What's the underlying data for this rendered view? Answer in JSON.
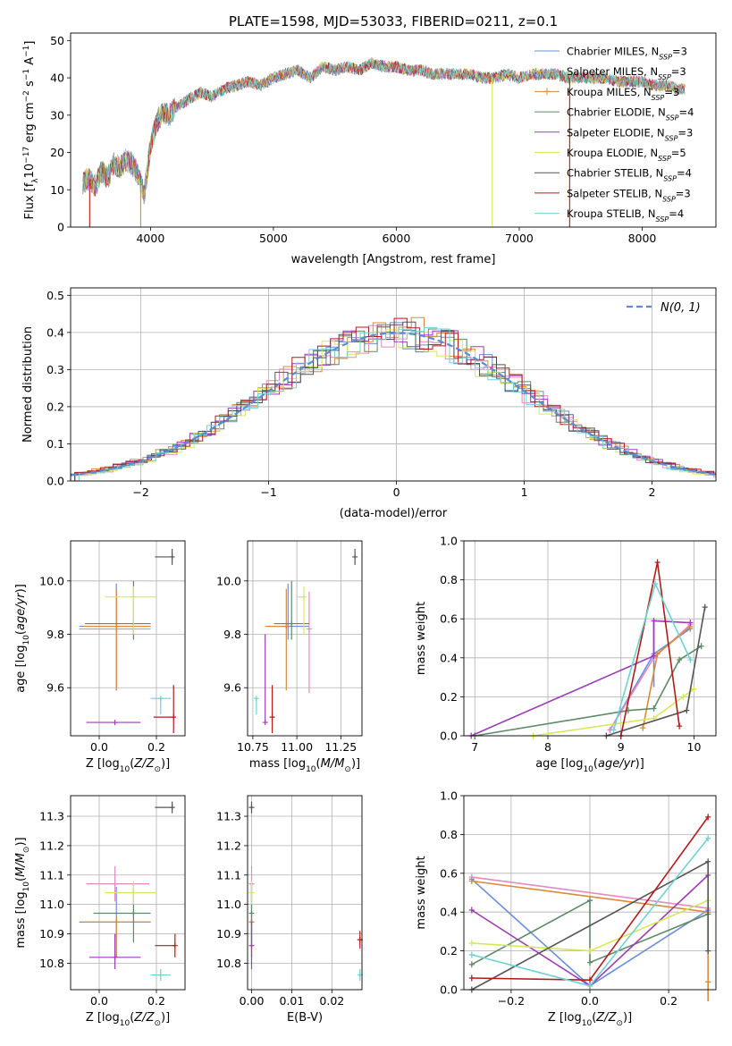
{
  "title": "PLATE=1598, MJD=53033, FIBERID=0211, z=0.1",
  "colors": [
    "#6a8fd8",
    "#e28ac2",
    "#d98a3c",
    "#5e8a66",
    "#9b3db5",
    "#d6e85a",
    "#555555",
    "#b31b1b",
    "#6fd2d2"
  ],
  "legend_spectrum": [
    "Chabrier MILES, N$_{SSP}$=3",
    "Salpeter MILES, N$_{SSP}$=3",
    "Kroupa MILES, N$_{SSP}$=3",
    "Chabrier ELODIE, N$_{SSP}$=4",
    "Salpeter ELODIE, N$_{SSP}$=3",
    "Kroupa ELODIE, N$_{SSP}$=5",
    "Chabrier STELIB, N$_{SSP}$=4",
    "Salpeter STELIB, N$_{SSP}$=3",
    "Kroupa STELIB, N$_{SSP}$=4"
  ],
  "legend_hist": "N(0, 1)",
  "chart_data": [
    {
      "type": "line",
      "name": "spectrum",
      "xlabel": "wavelength [Angstrom, rest frame]",
      "ylabel": "Flux [f_λ 10^-17 erg cm^-2 s^-1 A^-1]",
      "xlim": [
        3350,
        8600
      ],
      "ylim": [
        0,
        52
      ],
      "xticks": [
        4000,
        5000,
        6000,
        7000,
        8000
      ],
      "yticks": [
        0,
        10,
        20,
        30,
        40,
        50
      ],
      "grid": false,
      "envelope": {
        "x": [
          3450,
          3500,
          3550,
          3600,
          3650,
          3700,
          3750,
          3800,
          3850,
          3900,
          3950,
          4000,
          4050,
          4100,
          4150,
          4200,
          4300,
          4400,
          4500,
          4600,
          4700,
          4800,
          4900,
          5000,
          5100,
          5200,
          5300,
          5400,
          5500,
          5600,
          5700,
          5800,
          5900,
          6000,
          6100,
          6200,
          6300,
          6400,
          6500,
          6600,
          6700,
          6800,
          6900,
          7000,
          7100,
          7200,
          7300,
          7400,
          7500,
          7600,
          7700,
          7800,
          7900,
          8000,
          8100,
          8200,
          8300,
          8350
        ],
        "y": [
          12,
          13,
          11,
          15,
          13,
          17,
          16,
          18,
          17,
          14,
          9,
          22,
          28,
          31,
          30,
          32,
          34,
          36,
          35,
          37,
          38,
          39,
          38,
          40,
          41,
          42,
          40,
          43,
          42,
          43,
          42,
          44,
          43,
          43,
          42,
          42,
          41,
          41,
          41,
          41,
          40,
          40,
          41,
          40,
          41,
          41,
          41,
          40,
          40,
          40,
          40,
          39,
          39,
          39,
          38,
          38,
          37,
          37
        ]
      },
      "drops": [
        {
          "x": 3505,
          "color_index": 7
        },
        {
          "x": 3920,
          "color_index": 2
        },
        {
          "x": 6780,
          "color_index": 5
        },
        {
          "x": 7410,
          "color_index": 7
        }
      ]
    },
    {
      "type": "bar",
      "name": "residual-histogram",
      "xlabel": "(data-model)/error",
      "ylabel": "Normed distribution",
      "xlim": [
        -2.55,
        2.5
      ],
      "ylim": [
        0,
        0.52
      ],
      "xticks": [
        -2,
        -1,
        0,
        1,
        2
      ],
      "yticks": [
        0.0,
        0.1,
        0.2,
        0.3,
        0.4,
        0.5
      ],
      "grid": true,
      "bin_width": 0.1,
      "overlay": {
        "name": "N(0, 1)",
        "type": "gaussian",
        "mu": 0,
        "sigma": 1,
        "style": "dashed"
      }
    },
    {
      "type": "scatter",
      "name": "age-vs-Z",
      "xlabel": "Z [log10(Z/Z_sun)]",
      "ylabel": "age [log10(age/yr)]",
      "xlim": [
        -0.1,
        0.3
      ],
      "ylim": [
        9.42,
        10.15
      ],
      "xticks": [
        0.0,
        0.2
      ],
      "yticks": [
        9.6,
        9.8,
        10.0
      ],
      "grid": true,
      "points": [
        {
          "x": 0.06,
          "y": 9.83,
          "xerr": [
            0.13,
            0.12
          ],
          "yerr": [
            0.24,
            0.16
          ],
          "c": 0
        },
        {
          "x": 0.06,
          "y": 9.82,
          "xerr": [
            0.13,
            0.12
          ],
          "yerr": [
            0.23,
            0.14
          ],
          "c": 1
        },
        {
          "x": 0.06,
          "y": 9.83,
          "xerr": [
            0.12,
            0.12
          ],
          "yerr": [
            0.24,
            0.14
          ],
          "c": 2
        },
        {
          "x": 0.12,
          "y": 9.84,
          "xerr": [
            0.17,
            0.06
          ],
          "yerr": [
            0.06,
            0.16
          ],
          "c": 3
        },
        {
          "x": 0.055,
          "y": 9.47,
          "xerr": [
            0.1,
            0.09
          ],
          "yerr": [
            0.0,
            0.0
          ],
          "c": 4
        },
        {
          "x": 0.12,
          "y": 9.94,
          "xerr": [
            0.1,
            0.08
          ],
          "yerr": [
            0.14,
            0.04
          ],
          "c": 5
        },
        {
          "x": 0.255,
          "y": 10.09,
          "xerr": [
            0.06,
            0.0
          ],
          "yerr": [
            0.03,
            0.03
          ],
          "c": 6
        },
        {
          "x": 0.26,
          "y": 9.49,
          "xerr": [
            0.07,
            0.0
          ],
          "yerr": [
            0.06,
            0.12
          ],
          "c": 7
        },
        {
          "x": 0.215,
          "y": 9.56,
          "xerr": [
            0.035,
            0.035
          ],
          "yerr": [
            0.06,
            0.0
          ],
          "c": 8
        }
      ]
    },
    {
      "type": "scatter",
      "name": "age-vs-mass",
      "xlabel": "mass [log10(M/M_sun)]",
      "ylabel": "",
      "xlim": [
        10.72,
        11.37
      ],
      "ylim": [
        9.42,
        10.15
      ],
      "xticks": [
        10.75,
        11.0,
        11.25
      ],
      "yticks": [
        9.6,
        9.8,
        10.0
      ],
      "grid": true,
      "points": [
        {
          "x": 10.95,
          "y": 9.83,
          "xerr": [
            0.12,
            0.12
          ],
          "yerr": [
            0.05,
            0.16
          ],
          "c": 0
        },
        {
          "x": 11.07,
          "y": 9.82,
          "xerr": [
            0.0,
            0.0
          ],
          "yerr": [
            0.24,
            0.14
          ],
          "c": 1
        },
        {
          "x": 10.94,
          "y": 9.83,
          "xerr": [
            0.12,
            0.0
          ],
          "yerr": [
            0.24,
            0.14
          ],
          "c": 2
        },
        {
          "x": 10.97,
          "y": 9.84,
          "xerr": [
            0.1,
            0.1
          ],
          "yerr": [
            0.06,
            0.16
          ],
          "c": 3
        },
        {
          "x": 10.82,
          "y": 9.47,
          "xerr": [
            0.0,
            0.0
          ],
          "yerr": [
            0.0,
            0.33
          ],
          "c": 4
        },
        {
          "x": 11.04,
          "y": 9.94,
          "xerr": [
            0.04,
            0.0
          ],
          "yerr": [
            0.14,
            0.04
          ],
          "c": 5
        },
        {
          "x": 11.33,
          "y": 10.09,
          "xerr": [
            0.0,
            0.0
          ],
          "yerr": [
            0.03,
            0.03
          ],
          "c": 6
        },
        {
          "x": 10.86,
          "y": 9.49,
          "xerr": [
            0.0,
            0.0
          ],
          "yerr": [
            0.06,
            0.12
          ],
          "c": 7
        },
        {
          "x": 10.77,
          "y": 9.56,
          "xerr": [
            0.0,
            0.0
          ],
          "yerr": [
            0.06,
            0.0
          ],
          "c": 8
        }
      ]
    },
    {
      "type": "line",
      "name": "mass-weight-vs-age",
      "xlabel": "age [log10(age/yr)]",
      "ylabel": "mass weight",
      "xlim": [
        6.85,
        10.3
      ],
      "ylim": [
        0,
        1
      ],
      "xticks": [
        7,
        8,
        9,
        10
      ],
      "yticks": [
        0.0,
        0.2,
        0.4,
        0.6,
        0.8,
        1.0
      ],
      "grid": true,
      "series": [
        {
          "c": 0,
          "x": [
            8.85,
            9.45,
            9.95
          ],
          "y": [
            0.03,
            0.42,
            0.55
          ],
          "err": [
            0,
            0.17,
            0
          ]
        },
        {
          "c": 1,
          "x": [
            8.85,
            9.45,
            9.95
          ],
          "y": [
            0.03,
            0.4,
            0.57
          ],
          "err": [
            0,
            0,
            0
          ]
        },
        {
          "c": 2,
          "x": [
            9.3,
            9.5,
            9.95
          ],
          "y": [
            0.04,
            0.42,
            0.56
          ],
          "err": [
            0,
            0,
            0
          ]
        },
        {
          "c": 3,
          "x": [
            7.0,
            9.1,
            9.45,
            9.8,
            10.1
          ],
          "y": [
            0.0,
            0.13,
            0.14,
            0.39,
            0.46
          ],
          "err": [
            0,
            0,
            0,
            0,
            0
          ]
        },
        {
          "c": 4,
          "x": [
            6.95,
            9.45,
            9.45,
            9.95
          ],
          "y": [
            0.0,
            0.41,
            0.59,
            0.58
          ],
          "err": [
            0,
            0,
            0.18,
            0
          ]
        },
        {
          "c": 5,
          "x": [
            7.8,
            9.45,
            9.85,
            10.0
          ],
          "y": [
            0.0,
            0.09,
            0.2,
            0.24
          ],
          "err": [
            0,
            0,
            0,
            0
          ]
        },
        {
          "c": 6,
          "x": [
            8.8,
            9.9,
            10.15
          ],
          "y": [
            0.0,
            0.13,
            0.66
          ],
          "err": [
            0,
            0,
            0
          ]
        },
        {
          "c": 7,
          "x": [
            9.0,
            9.5,
            9.8
          ],
          "y": [
            0.0,
            0.89,
            0.05
          ],
          "err": [
            0,
            0,
            0
          ]
        },
        {
          "c": 8,
          "x": [
            8.9,
            9.47,
            9.95
          ],
          "y": [
            0.03,
            0.78,
            0.39
          ],
          "err": [
            0,
            0,
            0
          ]
        }
      ]
    },
    {
      "type": "scatter",
      "name": "mass-vs-Z",
      "xlabel": "Z [log10(Z/Z_sun)]",
      "ylabel": "mass [log10(M/M_sun)]",
      "xlim": [
        -0.1,
        0.3
      ],
      "ylim": [
        10.71,
        11.37
      ],
      "xticks": [
        0.0,
        0.2
      ],
      "yticks": [
        10.8,
        10.9,
        11.0,
        11.1,
        11.2,
        11.3
      ],
      "grid": true,
      "points": [
        {
          "x": 0.06,
          "y": 10.94,
          "xerr": [
            0.13,
            0.12
          ],
          "yerr": [
            0.12,
            0.12
          ],
          "c": 0
        },
        {
          "x": 0.055,
          "y": 11.07,
          "xerr": [
            0.1,
            0.12
          ],
          "yerr": [
            0.06,
            0.06
          ],
          "c": 1
        },
        {
          "x": 0.06,
          "y": 10.94,
          "xerr": [
            0.12,
            0.12
          ],
          "yerr": [
            0.12,
            0.02
          ],
          "c": 2
        },
        {
          "x": 0.12,
          "y": 10.97,
          "xerr": [
            0.14,
            0.06
          ],
          "yerr": [
            0.1,
            0.1
          ],
          "c": 3
        },
        {
          "x": 0.055,
          "y": 10.82,
          "xerr": [
            0.09,
            0.09
          ],
          "yerr": [
            0.04,
            0.08
          ],
          "c": 4
        },
        {
          "x": 0.12,
          "y": 11.04,
          "xerr": [
            0.1,
            0.08
          ],
          "yerr": [
            0.04,
            0.04
          ],
          "c": 5
        },
        {
          "x": 0.255,
          "y": 11.33,
          "xerr": [
            0.06,
            0.0
          ],
          "yerr": [
            0.02,
            0.02
          ],
          "c": 6
        },
        {
          "x": 0.265,
          "y": 10.86,
          "xerr": [
            0.07,
            0.0
          ],
          "yerr": [
            0.04,
            0.04
          ],
          "c": 7
        },
        {
          "x": 0.215,
          "y": 10.76,
          "xerr": [
            0.035,
            0.035
          ],
          "yerr": [
            0.02,
            0.02
          ],
          "c": 8
        }
      ]
    },
    {
      "type": "scatter",
      "name": "mass-vs-EBV",
      "xlabel": "E(B-V)",
      "ylabel": "",
      "xlim": [
        -0.001,
        0.0275
      ],
      "ylim": [
        10.71,
        11.37
      ],
      "xticks": [
        0.0,
        0.01,
        0.02
      ],
      "yticks": [
        10.8,
        10.9,
        11.0,
        11.1,
        11.2,
        11.3
      ],
      "grid": true,
      "points": [
        {
          "x": 0.0,
          "y": 10.94,
          "yerr": [
            0.12,
            0.12
          ],
          "c": 0
        },
        {
          "x": 0.0,
          "y": 11.07,
          "yerr": [
            0.06,
            0.06
          ],
          "c": 1
        },
        {
          "x": 0.0,
          "y": 10.94,
          "yerr": [
            0.12,
            0.02
          ],
          "c": 2
        },
        {
          "x": 0.0,
          "y": 10.97,
          "yerr": [
            0.1,
            0.1
          ],
          "c": 3
        },
        {
          "x": 0.0,
          "y": 10.86,
          "yerr": [
            0.08,
            0.08
          ],
          "c": 4
        },
        {
          "x": 0.0,
          "y": 11.04,
          "yerr": [
            0.04,
            0.04
          ],
          "c": 5
        },
        {
          "x": 0.0,
          "y": 11.33,
          "yerr": [
            0.02,
            0.02
          ],
          "c": 6
        },
        {
          "x": 0.027,
          "y": 10.88,
          "yerr": [
            0.03,
            0.03
          ],
          "c": 7
        },
        {
          "x": 0.027,
          "y": 10.76,
          "yerr": [
            0.02,
            0.02
          ],
          "c": 8
        }
      ]
    },
    {
      "type": "line",
      "name": "mass-weight-vs-Z",
      "xlabel": "Z [log10(Z/Z_sun)]",
      "ylabel": "mass weight",
      "xlim": [
        -0.32,
        0.32
      ],
      "ylim": [
        0,
        1
      ],
      "xticks": [
        -0.2,
        0.0,
        0.2
      ],
      "yticks": [
        0.0,
        0.2,
        0.4,
        0.6,
        0.8,
        1.0
      ],
      "grid": true,
      "series": [
        {
          "c": 0,
          "x": [
            -0.3,
            0.0,
            0.3
          ],
          "y": [
            0.57,
            0.02,
            0.41
          ],
          "err": [
            0,
            0,
            0
          ]
        },
        {
          "c": 1,
          "x": [
            -0.3,
            0.3
          ],
          "y": [
            0.58,
            0.42
          ],
          "err": [
            0,
            0
          ]
        },
        {
          "c": 2,
          "x": [
            -0.3,
            0.3,
            0.3
          ],
          "y": [
            0.56,
            0.4,
            0.04
          ],
          "err": [
            0,
            0,
            0.1
          ]
        },
        {
          "c": 3,
          "x": [
            -0.3,
            0.0,
            0.0,
            0.3
          ],
          "y": [
            0.13,
            0.46,
            0.14,
            0.39
          ],
          "err": [
            0,
            0,
            0,
            0
          ]
        },
        {
          "c": 4,
          "x": [
            -0.3,
            0.0,
            0.3
          ],
          "y": [
            0.41,
            0.02,
            0.59
          ],
          "err": [
            0,
            0,
            0
          ]
        },
        {
          "c": 5,
          "x": [
            -0.3,
            0.0,
            0.3
          ],
          "y": [
            0.24,
            0.2,
            0.46
          ],
          "err": [
            0,
            0,
            0
          ]
        },
        {
          "c": 6,
          "x": [
            -0.3,
            0.3,
            0.3
          ],
          "y": [
            0.0,
            0.66,
            0.2
          ],
          "err": [
            0,
            0,
            0
          ]
        },
        {
          "c": 7,
          "x": [
            -0.3,
            0.0,
            0.3
          ],
          "y": [
            0.06,
            0.05,
            0.89
          ],
          "err": [
            0,
            0,
            0
          ]
        },
        {
          "c": 8,
          "x": [
            -0.3,
            0.0,
            0.3
          ],
          "y": [
            0.18,
            0.02,
            0.78
          ],
          "err": [
            0,
            0,
            0
          ]
        }
      ]
    }
  ]
}
